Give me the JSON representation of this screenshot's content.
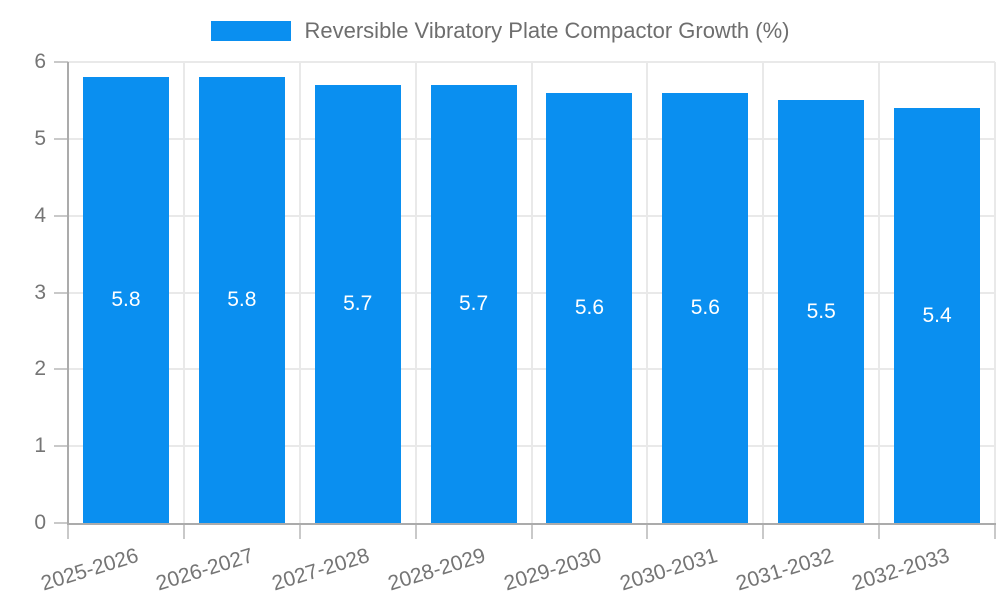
{
  "chart_data": {
    "type": "bar",
    "title": "Reversible Vibratory Plate Compactor Growth (%)",
    "xlabel": "",
    "ylabel": "",
    "categories": [
      "2025-2026",
      "2026-2027",
      "2027-2028",
      "2028-2029",
      "2029-2030",
      "2030-2031",
      "2031-2032",
      "2032-2033"
    ],
    "values": [
      5.8,
      5.8,
      5.7,
      5.7,
      5.6,
      5.6,
      5.5,
      5.4
    ],
    "bar_labels": [
      "5.8",
      "5.8",
      "5.7",
      "5.7",
      "5.6",
      "5.6",
      "5.5",
      "5.4"
    ],
    "ylim": [
      0,
      6
    ],
    "yticks": [
      0,
      1,
      2,
      3,
      4,
      5,
      6
    ],
    "grid": true,
    "legend_position": "top",
    "x_label_rotation_deg": -17,
    "colors": {
      "bar": "#0a8ff0",
      "grid": "#e9e9e9",
      "axis": "#ababab",
      "tick": "#c9c9c9",
      "tick_label": "#757575",
      "value_label": "#ffffff",
      "legend_text": "#6e6e6e",
      "background": "#ffffff"
    }
  }
}
